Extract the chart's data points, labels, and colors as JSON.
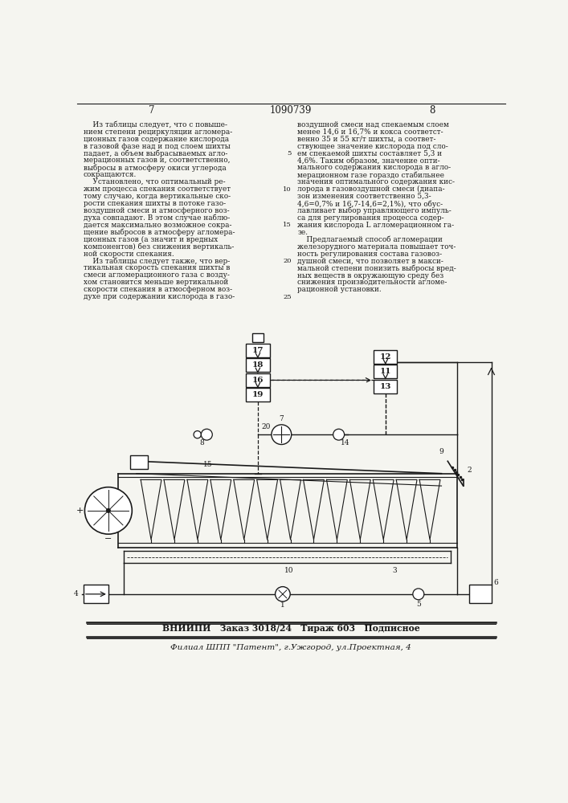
{
  "page_num_left": "7",
  "patent_num": "1090739",
  "page_num_right": "8",
  "col_left_text": [
    "    Из таблицы следует, что с повыше-",
    "нием степени рециркуляции агломера-",
    "ционных газов содержание кислорода",
    "в газовой фазе над и под слоем шихты",
    "падает, а объем выбрасываемых агло-",
    "мерационных газов и, соответственно,",
    "выбросы в атмосферу окиси углерода",
    "сокращаются.",
    "    Установлено, что оптимальный ре-",
    "жим процесса спекания соответствует",
    "тому случаю, когда вертикальные ско-",
    "рости спекания шихты в потоке газо-",
    "воздушной смеси и атмосферного воз-",
    "духа совпадают. В этом случае наблю-",
    "дается максимально возможное сокра-",
    "щение выбросов в атмосферу агломера-",
    "ционных газов (а значит и вредных",
    "компонентов) без снижения вертикаль-",
    "ной скорости спекания.",
    "    Из таблицы следует также, что вер-",
    "тикальная скорость спекания шихты в",
    "смеси агломерационного газа с возду-",
    "хом становится меньше вертикальной",
    "скорости спекания в атмосферном воз-",
    "духе при содержании кислорода в газо-"
  ],
  "col_right_text": [
    "воздушной смеси над спекаемым слоем",
    "менее 14,6 и 16,7% и кокса соответст-",
    "венно 35 и 55 кг/т шихты, а соответ-",
    "ствующее значение кислорода под сло-",
    "ем спекаемой шихты составляет 5,3 и",
    "4,6%. Таким образом, значение опти-",
    "мального содержания кислорода в агло-",
    "мерационном газе гораздо стабильнее",
    "значения оптимального содержания кис-",
    "лорода в газовоздушной смеси (диапа-",
    "зон изменения соответственно 5,3-",
    "4,6=0,7% и 16,7-14,6=2,1%), что обус-",
    "лавливает выбор управляющего импуль-",
    "са для регулирования процесса содер-",
    "жания кислорода L агломерационном га-",
    "зе.",
    "    Предлагаемый способ агломерации",
    "железорудного материала повышает точ-",
    "ность регулирования состава газовоз-",
    "душной смеси, что позволяет в макси-",
    "мальной степени понизить выбросы вред-",
    "ных веществ в окружающую среду без",
    "снижения производительности агломе-",
    "рационной установки."
  ],
  "footer_line1": "ВНИИПИ   Заказ 3018/24   Тираж 603   Подписное",
  "footer_line2": "Филиал ШПП \"Патент\", г.Ужгород, ул.Проектная, 4",
  "background_color": "#f5f5f0",
  "text_color": "#1a1a1a",
  "diagram_color": "#1a1a1a",
  "line_numbers": {
    "4": "5",
    "9": "10",
    "14": "15",
    "19": "20",
    "24": "25"
  }
}
